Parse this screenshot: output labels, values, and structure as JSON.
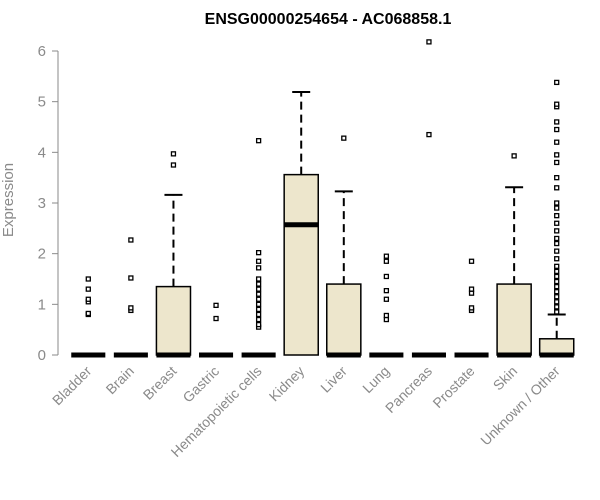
{
  "chart_data": {
    "type": "box",
    "title": "ENSG00000254654 - AC068858.1",
    "ylabel": "Expression",
    "xlabel": "",
    "ylim": [
      0,
      6.2
    ],
    "yticks": [
      0,
      1,
      2,
      3,
      4,
      5,
      6
    ],
    "grid": false,
    "colors": {
      "box_fill": "#ede6cc",
      "stroke": "#000000",
      "axis": "#8a8a8a"
    },
    "categories": [
      "Bladder",
      "Brain",
      "Breast",
      "Gastric",
      "Hematopoietic cells",
      "Kidney",
      "Liver",
      "Lung",
      "Pancreas",
      "Prostate",
      "Skin",
      "Unknown / Other"
    ],
    "boxes": [
      {
        "q1": 0,
        "median": 0,
        "q3": 0,
        "whisker_low": 0,
        "whisker_high": 0,
        "outliers": [
          0.8,
          0.82,
          1.05,
          1.1,
          1.3,
          1.5
        ]
      },
      {
        "q1": 0,
        "median": 0,
        "q3": 0,
        "whisker_low": 0,
        "whisker_high": 0,
        "outliers": [
          0.88,
          0.93,
          1.52,
          2.27
        ]
      },
      {
        "q1": 0,
        "median": 0,
        "q3": 1.35,
        "whisker_low": 0,
        "whisker_high": 3.16,
        "outliers": [
          3.75,
          3.97
        ]
      },
      {
        "q1": 0,
        "median": 0,
        "q3": 0,
        "whisker_low": 0,
        "whisker_high": 0,
        "outliers": [
          0.72,
          0.98
        ]
      },
      {
        "q1": 0,
        "median": 0,
        "q3": 0,
        "whisker_low": 0,
        "whisker_high": 0,
        "outliers": [
          0.55,
          0.6,
          0.7,
          0.8,
          0.9,
          1.0,
          1.1,
          1.2,
          1.3,
          1.4,
          1.5,
          1.72,
          1.85,
          2.02,
          4.23
        ]
      },
      {
        "q1": 0,
        "median": 2.57,
        "q3": 3.56,
        "whisker_low": 0,
        "whisker_high": 5.19,
        "outliers": []
      },
      {
        "q1": 0,
        "median": 0,
        "q3": 1.4,
        "whisker_low": 0,
        "whisker_high": 3.23,
        "outliers": [
          4.28
        ]
      },
      {
        "q1": 0,
        "median": 0,
        "q3": 0,
        "whisker_low": 0,
        "whisker_high": 0,
        "outliers": [
          0.7,
          0.78,
          1.1,
          1.27,
          1.55,
          1.85,
          1.95
        ]
      },
      {
        "q1": 0,
        "median": 0,
        "q3": 0,
        "whisker_low": 0,
        "whisker_high": 0,
        "outliers": [
          4.35,
          6.18
        ]
      },
      {
        "q1": 0,
        "median": 0,
        "q3": 0,
        "whisker_low": 0,
        "whisker_high": 0,
        "outliers": [
          0.88,
          0.93,
          1.22,
          1.3,
          1.85
        ]
      },
      {
        "q1": 0,
        "median": 0,
        "q3": 1.4,
        "whisker_low": 0,
        "whisker_high": 3.31,
        "outliers": [
          3.93
        ]
      },
      {
        "q1": 0,
        "median": 0,
        "q3": 0.32,
        "whisker_low": 0,
        "whisker_high": 0.8,
        "outliers": [
          0.85,
          0.95,
          1.05,
          1.15,
          1.25,
          1.35,
          1.45,
          1.55,
          1.65,
          1.75,
          1.9,
          2.05,
          2.2,
          2.3,
          2.45,
          2.6,
          2.75,
          2.9,
          3.0,
          3.3,
          3.5,
          3.8,
          3.95,
          4.2,
          4.45,
          4.6,
          4.9,
          4.95,
          5.38
        ]
      }
    ]
  }
}
